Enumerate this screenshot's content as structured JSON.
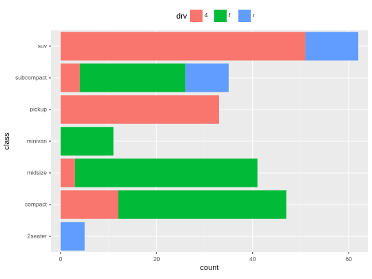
{
  "chart_data": {
    "type": "bar",
    "orientation": "horizontal",
    "stacked": true,
    "xlabel": "count",
    "ylabel": "class",
    "xlim": [
      -2,
      64
    ],
    "xticks": [
      0,
      20,
      40,
      60
    ],
    "grid": true,
    "legend": {
      "title": "drv",
      "placement": "top",
      "entries": [
        {
          "label": "4",
          "color": "#F8766D"
        },
        {
          "label": "f",
          "color": "#00BA38"
        },
        {
          "label": "r",
          "color": "#619CFF"
        }
      ]
    },
    "categories": [
      "2seater",
      "compact",
      "midsize",
      "minivan",
      "pickup",
      "subcompact",
      "suv"
    ],
    "series": [
      {
        "name": "4",
        "color": "#F8766D",
        "values": [
          0,
          12,
          3,
          0,
          33,
          4,
          51
        ]
      },
      {
        "name": "f",
        "color": "#00BA38",
        "values": [
          0,
          35,
          38,
          11,
          0,
          22,
          0
        ]
      },
      {
        "name": "r",
        "color": "#619CFF",
        "values": [
          5,
          0,
          0,
          0,
          0,
          9,
          11
        ]
      }
    ]
  }
}
